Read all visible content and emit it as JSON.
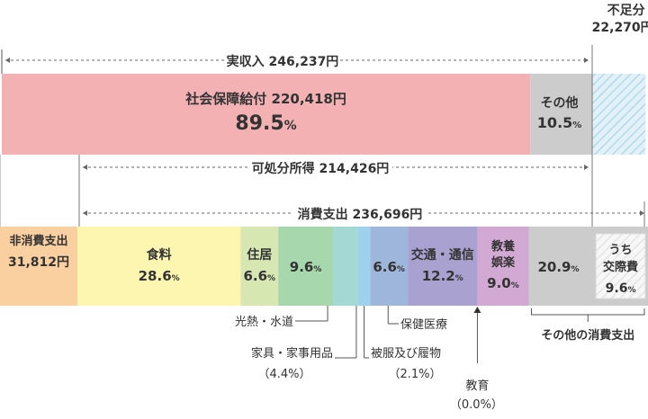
{
  "chart_data": {
    "type": "bar",
    "title": "",
    "income": {
      "label": "実収入",
      "value_text": "246,237円",
      "value": 246237,
      "segments": [
        {
          "name": "社会保障給付",
          "amount_text": "220,418円",
          "value": 220418,
          "pct": 89.5,
          "pct_text": "89.5",
          "color": "#f3b1b4"
        },
        {
          "name": "その他",
          "pct": 10.5,
          "pct_text": "10.5",
          "color": "#cccccc"
        }
      ],
      "shortfall": {
        "label": "不足分",
        "value_text": "22,270円",
        "value": 22270,
        "color": "#cfe7f3"
      }
    },
    "disposable": {
      "label": "可処分所得",
      "value_text": "214,426円",
      "value": 214426
    },
    "consumption": {
      "label": "消費支出",
      "value_text": "236,696円",
      "value": 236696
    },
    "non_consumption": {
      "label": "非消費支出",
      "value_text": "31,812円",
      "value": 31812,
      "color": "#fbd0a1"
    },
    "expenditure": [
      {
        "id": "food",
        "label": "食料",
        "pct": 28.6,
        "color": "#fdf6b1",
        "inside": true
      },
      {
        "id": "housing",
        "label": "住居",
        "pct": 6.6,
        "color": "#d7e7b1",
        "inside": true
      },
      {
        "id": "utilities",
        "label": "光熱・水道",
        "pct": 9.6,
        "color": "#a6d7ad",
        "inside": true,
        "pct_only": true,
        "callout": true
      },
      {
        "id": "furniture",
        "label": "家具・家事用品",
        "pct": 4.4,
        "pct_text": "（4.4%）",
        "color": "#a4d8d4",
        "inside": false,
        "callout": true
      },
      {
        "id": "clothing",
        "label": "被服及び履物",
        "pct": 2.1,
        "pct_text": "（2.1%）",
        "color": "#9ed1ee",
        "inside": false,
        "callout": true
      },
      {
        "id": "medical",
        "label": "保健医療",
        "pct": 6.6,
        "color": "#9fb6dc",
        "inside": true,
        "pct_only": true,
        "callout": true
      },
      {
        "id": "transport",
        "label": "交通・通信",
        "pct": 12.2,
        "color": "#a9a2d0",
        "inside": true
      },
      {
        "id": "education",
        "label": "教育",
        "pct": 0.0,
        "pct_text": "（0.0%）",
        "color": "#a9a2d0",
        "inside": false,
        "callout": true
      },
      {
        "id": "recreation",
        "label": "教養娯楽",
        "label_lines": [
          "教養",
          "娯楽"
        ],
        "pct": 9.0,
        "color": "#d2a9d2",
        "inside": true
      },
      {
        "id": "other",
        "label": "その他の消費支出",
        "pct": 20.9,
        "color": "#cccccc",
        "inside": true,
        "pct_only": true
      },
      {
        "id": "social",
        "label": "うち交際費",
        "label_lines": [
          "うち",
          "交際費"
        ],
        "pct": 9.6,
        "color": "#eeeeee"
      }
    ],
    "pct_unit": "%"
  }
}
